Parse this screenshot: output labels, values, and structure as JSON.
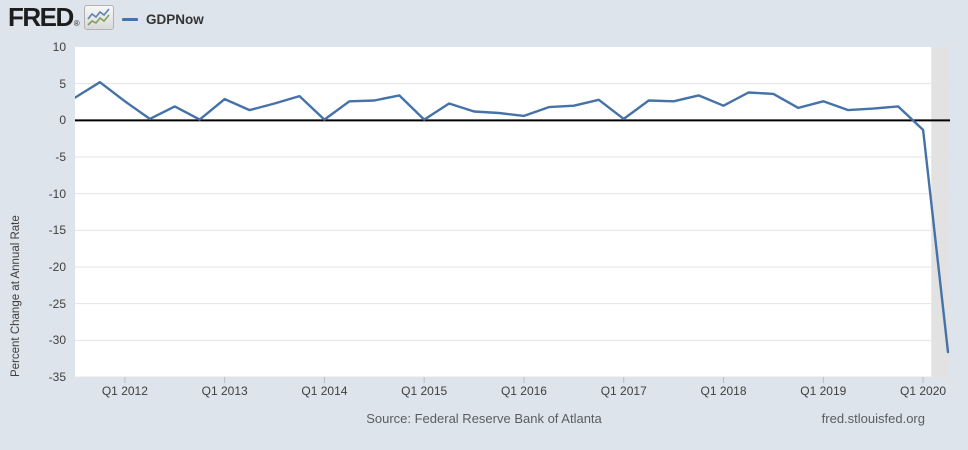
{
  "header": {
    "logo_text": "FRED",
    "registered_mark": "®",
    "logo_icon": "fred-sparkline-icon",
    "legend": {
      "series_label": "GDPNow",
      "series_color": "#4572a7"
    }
  },
  "footer": {
    "source": "Source: Federal Reserve Bank of Atlanta",
    "site": "fred.stlouisfed.org"
  },
  "colors": {
    "background": "#dee4eb",
    "plot_background": "#ffffff",
    "grid": "#e4e4e4",
    "zero_line": "#000000",
    "tick_mark": "#b6bec8",
    "line": "#4572a7",
    "recession_band": "#e2e2e2"
  },
  "chart_data": {
    "type": "line",
    "title": "",
    "xlabel": "",
    "ylabel": "Percent Change at Annual Rate",
    "ylim": [
      -35,
      10
    ],
    "xlim": [
      2011.5,
      2020.27
    ],
    "grid": "horizontal-only",
    "legend_position": "top-left-header",
    "y_ticks": [
      10,
      5,
      0,
      -5,
      -10,
      -15,
      -20,
      -25,
      -30,
      -35
    ],
    "x_ticks": [
      {
        "t": 2012,
        "label": "Q1 2012"
      },
      {
        "t": 2013,
        "label": "Q1 2013"
      },
      {
        "t": 2014,
        "label": "Q1 2014"
      },
      {
        "t": 2015,
        "label": "Q1 2015"
      },
      {
        "t": 2016,
        "label": "Q1 2016"
      },
      {
        "t": 2017,
        "label": "Q1 2017"
      },
      {
        "t": 2018,
        "label": "Q1 2018"
      },
      {
        "t": 2019,
        "label": "Q1 2019"
      },
      {
        "t": 2020,
        "label": "Q1 2020"
      }
    ],
    "zero_line": true,
    "recession_band": {
      "start": 2020.083,
      "end": 2020.27
    },
    "series": [
      {
        "name": "GDPNow",
        "color": "#4572a7",
        "points": [
          {
            "q": "Q3 2011",
            "t": 2011.5,
            "v": 3.1
          },
          {
            "q": "Q4 2011",
            "t": 2011.75,
            "v": 5.2
          },
          {
            "q": "Q1 2012",
            "t": 2012.0,
            "v": 2.6
          },
          {
            "q": "Q2 2012",
            "t": 2012.25,
            "v": 0.2
          },
          {
            "q": "Q3 2012",
            "t": 2012.5,
            "v": 1.9
          },
          {
            "q": "Q4 2012",
            "t": 2012.75,
            "v": 0.1
          },
          {
            "q": "Q1 2013",
            "t": 2013.0,
            "v": 2.9
          },
          {
            "q": "Q2 2013",
            "t": 2013.25,
            "v": 1.4
          },
          {
            "q": "Q3 2013",
            "t": 2013.5,
            "v": 2.3
          },
          {
            "q": "Q4 2013",
            "t": 2013.75,
            "v": 3.3
          },
          {
            "q": "Q1 2014",
            "t": 2014.0,
            "v": 0.1
          },
          {
            "q": "Q2 2014",
            "t": 2014.25,
            "v": 2.6
          },
          {
            "q": "Q3 2014",
            "t": 2014.5,
            "v": 2.7
          },
          {
            "q": "Q4 2014",
            "t": 2014.75,
            "v": 3.4
          },
          {
            "q": "Q1 2015",
            "t": 2015.0,
            "v": 0.1
          },
          {
            "q": "Q2 2015",
            "t": 2015.25,
            "v": 2.3
          },
          {
            "q": "Q3 2015",
            "t": 2015.5,
            "v": 1.2
          },
          {
            "q": "Q4 2015",
            "t": 2015.75,
            "v": 1.0
          },
          {
            "q": "Q1 2016",
            "t": 2016.0,
            "v": 0.6
          },
          {
            "q": "Q2 2016",
            "t": 2016.25,
            "v": 1.8
          },
          {
            "q": "Q3 2016",
            "t": 2016.5,
            "v": 2.0
          },
          {
            "q": "Q4 2016",
            "t": 2016.75,
            "v": 2.8
          },
          {
            "q": "Q1 2017",
            "t": 2017.0,
            "v": 0.2
          },
          {
            "q": "Q2 2017",
            "t": 2017.25,
            "v": 2.7
          },
          {
            "q": "Q3 2017",
            "t": 2017.5,
            "v": 2.6
          },
          {
            "q": "Q4 2017",
            "t": 2017.75,
            "v": 3.4
          },
          {
            "q": "Q1 2018",
            "t": 2018.0,
            "v": 2.0
          },
          {
            "q": "Q2 2018",
            "t": 2018.25,
            "v": 3.8
          },
          {
            "q": "Q3 2018",
            "t": 2018.5,
            "v": 3.6
          },
          {
            "q": "Q4 2018",
            "t": 2018.75,
            "v": 1.7
          },
          {
            "q": "Q1 2019",
            "t": 2019.0,
            "v": 2.6
          },
          {
            "q": "Q2 2019",
            "t": 2019.25,
            "v": 1.4
          },
          {
            "q": "Q3 2019",
            "t": 2019.5,
            "v": 1.6
          },
          {
            "q": "Q4 2019",
            "t": 2019.75,
            "v": 1.9
          },
          {
            "q": "Q1 2020",
            "t": 2020.0,
            "v": -1.3
          },
          {
            "q": "Apr 2020",
            "t": 2020.25,
            "v": -31.6
          }
        ]
      }
    ]
  }
}
